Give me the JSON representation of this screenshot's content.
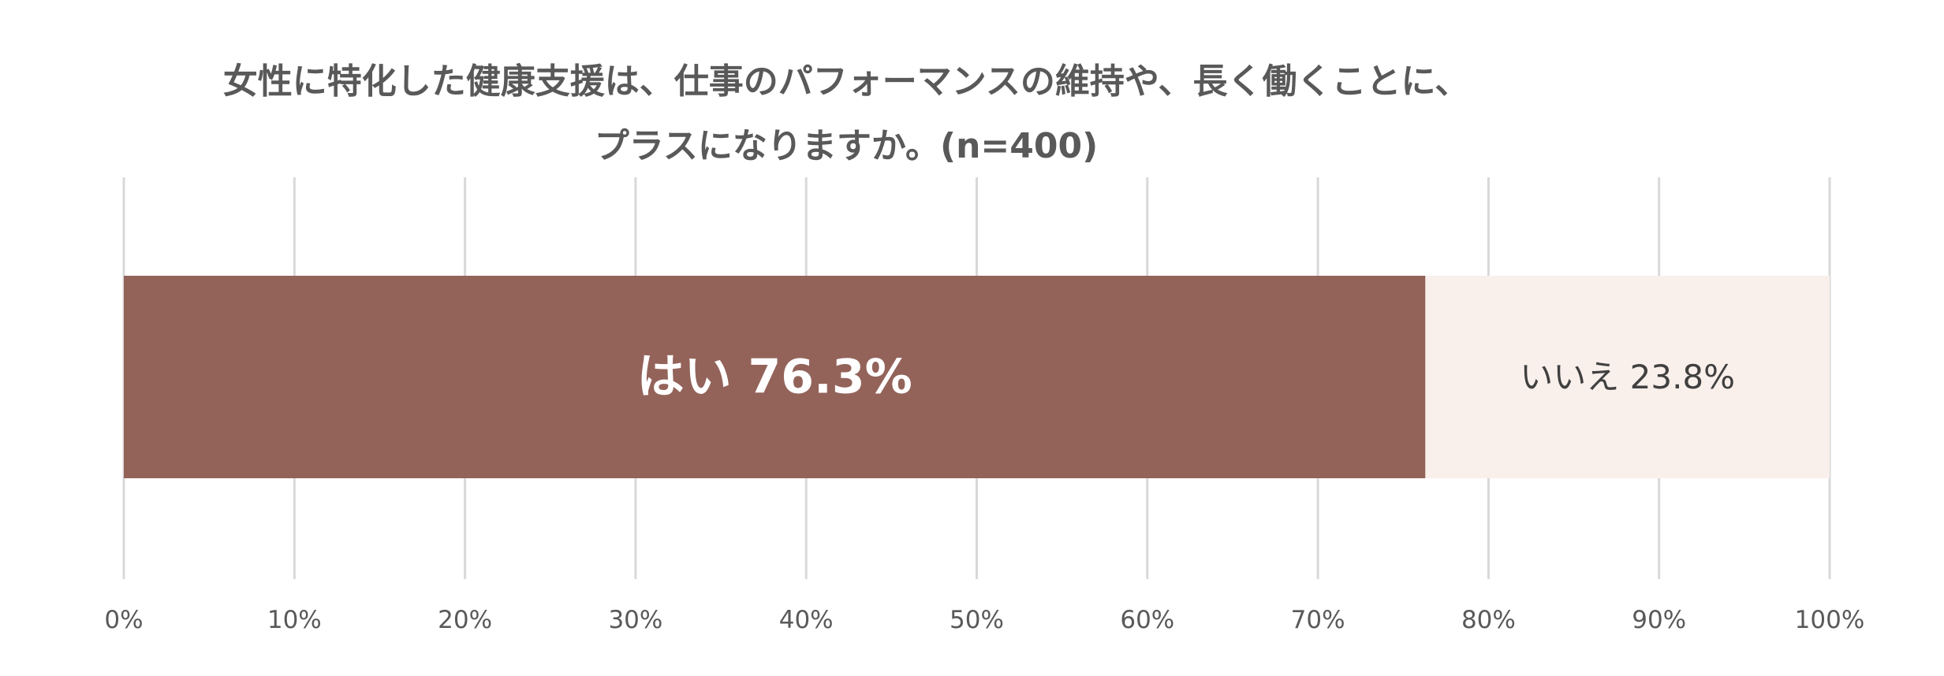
{
  "chart_data": {
    "type": "bar",
    "orientation": "horizontal",
    "stacked": true,
    "title_lines": [
      "女性に特化した健康支援は、仕事のパフォーマンスの維持や、長く働くことに、",
      "プラスになりますか。(n=400)"
    ],
    "xlim": [
      0,
      100
    ],
    "x_ticks": [
      "0%",
      "10%",
      "20%",
      "30%",
      "40%",
      "50%",
      "60%",
      "70%",
      "80%",
      "90%",
      "100%"
    ],
    "grid": true,
    "legend": "none",
    "series": [
      {
        "name": "はい",
        "value": 76.3,
        "label": "はい 76.3%",
        "color": "#93635a"
      },
      {
        "name": "いいえ",
        "value": 23.8,
        "label": "いいえ 23.8%",
        "color": "#f9efeb"
      }
    ]
  }
}
